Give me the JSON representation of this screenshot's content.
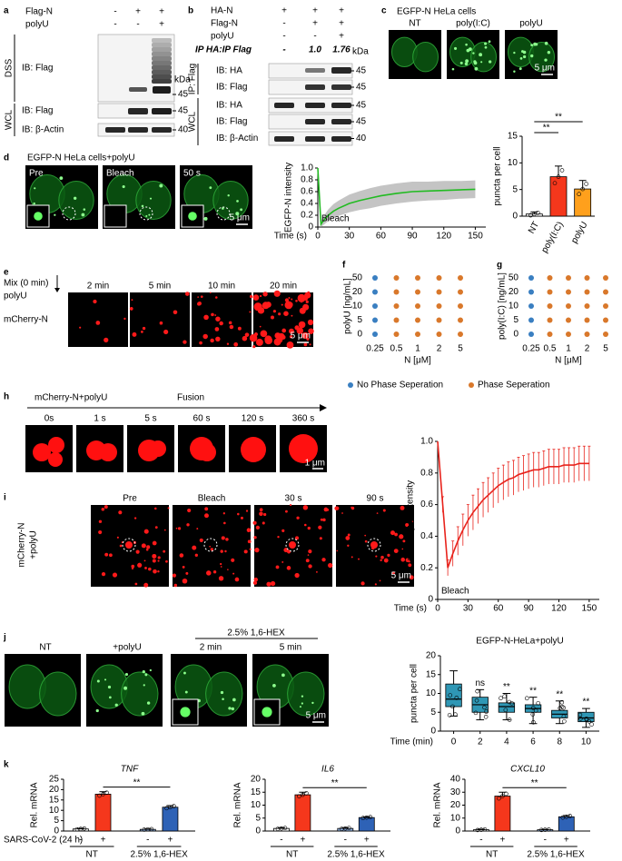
{
  "figure": {
    "a": {
      "label": "a",
      "conditions": [
        {
          "name": "Flag-N",
          "signs": [
            "-",
            "+",
            "+"
          ]
        },
        {
          "name": "polyU",
          "signs": [
            "-",
            "-",
            "+"
          ]
        }
      ],
      "groups": [
        "DSS",
        "WCL"
      ],
      "blots": [
        "IB: Flag",
        "IB: Flag",
        "IB: β-Actin"
      ],
      "kda_title": "kDa",
      "kda": [
        "45",
        "45",
        "40"
      ]
    },
    "b": {
      "label": "b",
      "conditions": [
        {
          "name": "HA-N",
          "signs": [
            "+",
            "+",
            "+"
          ]
        },
        {
          "name": "Flag-N",
          "signs": [
            "-",
            "+",
            "+"
          ]
        },
        {
          "name": "polyU",
          "signs": [
            "-",
            "-",
            "+"
          ]
        }
      ],
      "ratio_name": "IP HA:IP Flag",
      "ratios": [
        "-",
        "1.0",
        "1.76"
      ],
      "kda_title": "kDa",
      "groups": [
        "IP: Flag",
        "WCL"
      ],
      "blots": [
        "IB: HA",
        "IB: Flag",
        "IB: HA",
        "IB: Flag",
        "IB: β-Actin"
      ],
      "kda": [
        "45",
        "45",
        "45",
        "45",
        "40"
      ]
    },
    "c": {
      "label": "c",
      "title": "EGFP-N HeLa cells",
      "images": [
        "NT",
        "poly(I:C)",
        "polyU"
      ],
      "scale": "5 μm"
    },
    "d": {
      "label": "d",
      "title": "EGFP-N HeLa cells+polyU",
      "images": [
        "Pre",
        "Bleach",
        "50 s"
      ],
      "scale": "5 μm"
    },
    "e": {
      "label": "e",
      "mix": "Mix (0 min)",
      "treatment": "polyU",
      "row": "mCherry-N",
      "images": [
        "2 min",
        "5 min",
        "10 min",
        "20 min"
      ],
      "scale": "5 μm"
    },
    "f": {
      "label": "f"
    },
    "g": {
      "label": "g"
    },
    "h": {
      "label": "h",
      "title": "mCherry-N+polyU",
      "arrow": "Fusion",
      "images": [
        "0s",
        "1 s",
        "5 s",
        "60 s",
        "120 s",
        "360 s"
      ],
      "scale": "1 μm"
    },
    "i": {
      "label": "i",
      "row": [
        "mCherry-N",
        "+polyU"
      ],
      "images": [
        "Pre",
        "Bleach",
        "30 s",
        "90 s"
      ],
      "scale": "5 μm"
    },
    "j": {
      "label": "j",
      "images": [
        "NT",
        "+polyU",
        "2 min",
        "5 min"
      ],
      "treatment": "2.5% 1,6-HEX",
      "scale": "5 μm"
    },
    "k": {
      "label": "k"
    }
  },
  "chart_data": [
    {
      "type": "bar",
      "ylabel": "puncta per cell",
      "categories": [
        "NT",
        "poly(I:C)",
        "polyU"
      ],
      "values": [
        0.4,
        7.4,
        5.1
      ],
      "errors": [
        0.4,
        2.0,
        1.6
      ],
      "colors": [
        "#ffffff",
        "#f5371c",
        "#ffa01c"
      ],
      "ylim": [
        0,
        15
      ],
      "yticks": [
        0,
        5,
        10,
        15
      ],
      "annotations": [
        "**",
        "**"
      ]
    },
    {
      "type": "line",
      "ylabel": "EGFP-N intensity",
      "xlabel": "Time (s)",
      "annotation": "Bleach",
      "x": [
        0,
        3,
        5,
        10,
        15,
        20,
        30,
        40,
        50,
        60,
        75,
        90,
        105,
        120,
        135,
        150
      ],
      "series": [
        {
          "color": "#22bb22",
          "values": [
            1,
            0.05,
            0.1,
            0.2,
            0.27,
            0.32,
            0.4,
            0.45,
            0.49,
            0.53,
            0.57,
            0.6,
            0.61,
            0.62,
            0.63,
            0.64
          ],
          "errors": [
            0,
            0.05,
            0.07,
            0.1,
            0.12,
            0.13,
            0.15,
            0.16,
            0.17,
            0.17,
            0.17,
            0.17,
            0.16,
            0.16,
            0.15,
            0.15
          ]
        }
      ],
      "band_color": "#c4c4c4",
      "xlim": [
        0,
        160
      ],
      "xticks": [
        0,
        30,
        60,
        90,
        120,
        150
      ],
      "ylim": [
        0,
        1
      ],
      "yticks": [
        0,
        0.2,
        0.4,
        0.6,
        0.8,
        {
          "value": 1,
          "label": "1.0"
        }
      ]
    },
    {
      "type": "scatter",
      "ylabel": "polyU [ng/mL]",
      "xlabel": "N [μM]",
      "categories": [
        "0.25",
        "0.5",
        "1",
        "2",
        "5"
      ],
      "ycategories": [
        "0",
        "5",
        "10",
        "20",
        "50"
      ],
      "series": [
        {
          "name": "No Phase Seperation",
          "color": "#3a7fc1",
          "x": [
            "0.25",
            "0.25",
            "0.25",
            "0.25",
            "0.25"
          ],
          "y": [
            "0",
            "5",
            "10",
            "20",
            "50"
          ]
        },
        {
          "name": "Phase Seperation",
          "color": "#d9782b",
          "x": [
            "0.5",
            "1",
            "2",
            "5",
            "0.5",
            "1",
            "2",
            "5",
            "0.5",
            "1",
            "2",
            "5",
            "0.5",
            "1",
            "2",
            "5",
            "0.5",
            "1",
            "2",
            "5"
          ],
          "y": [
            "0",
            "0",
            "0",
            "0",
            "5",
            "5",
            "5",
            "5",
            "10",
            "10",
            "10",
            "10",
            "20",
            "20",
            "20",
            "20",
            "50",
            "50",
            "50",
            "50"
          ]
        }
      ]
    },
    {
      "type": "scatter",
      "ylabel": "poly(I:C) [ng/mL]",
      "xlabel": "N [μM]",
      "categories": [
        "0.25",
        "0.5",
        "1",
        "2",
        "5"
      ],
      "ycategories": [
        "0",
        "5",
        "10",
        "20",
        "50"
      ],
      "series": [
        {
          "color": "#3a7fc1",
          "x": [
            "0.25",
            "0.25",
            "0.25",
            "0.25",
            "0.25"
          ],
          "y": [
            "0",
            "5",
            "10",
            "20",
            "50"
          ]
        },
        {
          "color": "#d9782b",
          "x": [
            "0.5",
            "1",
            "2",
            "5",
            "0.5",
            "1",
            "2",
            "5",
            "0.5",
            "1",
            "2",
            "5",
            "0.5",
            "1",
            "2",
            "5",
            "0.5",
            "1",
            "2",
            "5"
          ],
          "y": [
            "0",
            "0",
            "0",
            "0",
            "5",
            "5",
            "5",
            "5",
            "10",
            "10",
            "10",
            "10",
            "20",
            "20",
            "20",
            "20",
            "50",
            "50",
            "50",
            "50"
          ]
        }
      ]
    },
    {
      "type": "line",
      "ylabel": "mCherry-N intensity",
      "xlabel": "Time (s)",
      "annotation": "Bleach",
      "x": [
        0,
        5,
        10,
        15,
        20,
        25,
        30,
        35,
        40,
        45,
        50,
        55,
        60,
        65,
        70,
        75,
        80,
        85,
        90,
        95,
        100,
        105,
        110,
        115,
        120,
        125,
        130,
        135,
        140,
        145,
        150
      ],
      "series": [
        {
          "color": "#e8231c",
          "values": [
            1,
            0.6,
            0.2,
            0.29,
            0.37,
            0.44,
            0.5,
            0.55,
            0.59,
            0.63,
            0.66,
            0.69,
            0.72,
            0.74,
            0.76,
            0.77,
            0.79,
            0.8,
            0.81,
            0.82,
            0.82,
            0.83,
            0.84,
            0.84,
            0.84,
            0.85,
            0.85,
            0.85,
            0.86,
            0.86,
            0.86
          ],
          "errors": [
            0,
            0.05,
            0.05,
            0.08,
            0.09,
            0.1,
            0.1,
            0.11,
            0.11,
            0.11,
            0.11,
            0.11,
            0.11,
            0.11,
            0.11,
            0.11,
            0.11,
            0.11,
            0.11,
            0.11,
            0.11,
            0.11,
            0.11,
            0.11,
            0.11,
            0.11,
            0.11,
            0.11,
            0.11,
            0.11,
            0.11
          ]
        }
      ],
      "xlim": [
        0,
        160
      ],
      "xticks": [
        0,
        30,
        60,
        90,
        120,
        150
      ],
      "ylim": [
        0,
        1
      ],
      "yticks": [
        0,
        0.2,
        0.4,
        0.6,
        0.8,
        {
          "value": 1,
          "label": "1.0"
        }
      ]
    },
    {
      "type": "box",
      "title": "EGFP-N-HeLa+polyU",
      "ylabel": "puncta per cell",
      "xlabel": "Time (min)",
      "categories": [
        "0",
        "2",
        "4",
        "6",
        "8",
        "10"
      ],
      "boxes": [
        {
          "min": 4,
          "q1": 6.5,
          "median": 8.5,
          "q3": 12.5,
          "max": 16
        },
        {
          "min": 3,
          "q1": 5,
          "median": 7,
          "q3": 9,
          "max": 11
        },
        {
          "min": 3,
          "q1": 5,
          "median": 6.5,
          "q3": 7.5,
          "max": 10
        },
        {
          "min": 2,
          "q1": 5,
          "median": 6,
          "q3": 7,
          "max": 9
        },
        {
          "min": 2,
          "q1": 3.5,
          "median": 4.5,
          "q3": 5.5,
          "max": 8
        },
        {
          "min": 1,
          "q1": 2.5,
          "median": 3.5,
          "q3": 5,
          "max": 6
        }
      ],
      "color": "#2f97b5",
      "annotations": [
        null,
        "ns",
        "**",
        "**",
        "**",
        "**"
      ],
      "ylim": [
        0,
        20
      ],
      "yticks": [
        0,
        5,
        10,
        15,
        20
      ]
    },
    {
      "type": "bar",
      "title": "TNF",
      "ylabel": "Rel. mRNA",
      "condition_label": "SARS-CoV-2 (24 h)",
      "categories": [
        "-",
        "+",
        "-",
        "+"
      ],
      "groups": [
        "NT",
        "2.5% 1,6-HEX"
      ],
      "values": [
        1,
        17.8,
        0.8,
        11.5
      ],
      "errors": [
        0.3,
        1.2,
        0.2,
        0.8
      ],
      "colors": [
        "#ffffff",
        "#f5371c",
        "#8fb0e0",
        "#2e62b6"
      ],
      "ylim": [
        0,
        25
      ],
      "yticks": [
        0,
        5,
        10,
        15,
        20,
        25
      ],
      "annotations": [
        "**"
      ]
    },
    {
      "type": "bar",
      "title": "IL6",
      "ylabel": "Rel. mRNA",
      "categories": [
        "-",
        "+",
        "-",
        "+"
      ],
      "groups": [
        "NT",
        "2.5% 1,6-HEX"
      ],
      "values": [
        1,
        14,
        1,
        5.2
      ],
      "errors": [
        0.3,
        1,
        0.3,
        0.3
      ],
      "colors": [
        "#ffffff",
        "#f5371c",
        "#8fb0e0",
        "#2e62b6"
      ],
      "ylim": [
        0,
        20
      ],
      "yticks": [
        0,
        5,
        10,
        15,
        20
      ],
      "annotations": [
        "**"
      ]
    },
    {
      "type": "bar",
      "title": "CXCL10",
      "ylabel": "Rel. mRNA",
      "categories": [
        "-",
        "+",
        "-",
        "+"
      ],
      "groups": [
        "NT",
        "2.5% 1,6-HEX"
      ],
      "values": [
        1,
        27,
        1,
        11
      ],
      "errors": [
        0.4,
        3,
        0.3,
        1
      ],
      "colors": [
        "#ffffff",
        "#f5371c",
        "#8fb0e0",
        "#2e62b6"
      ],
      "ylim": [
        0,
        40
      ],
      "yticks": [
        0,
        10,
        20,
        30,
        40
      ],
      "annotations": [
        "**"
      ]
    }
  ]
}
